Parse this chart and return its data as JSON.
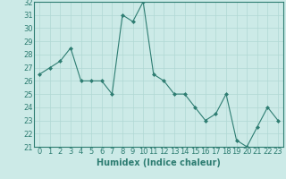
{
  "x": [
    0,
    1,
    2,
    3,
    4,
    5,
    6,
    7,
    8,
    9,
    10,
    11,
    12,
    13,
    14,
    15,
    16,
    17,
    18,
    19,
    20,
    21,
    22,
    23
  ],
  "y": [
    26.5,
    27,
    27.5,
    28.5,
    26,
    26,
    26,
    25,
    31,
    30.5,
    32,
    26.5,
    26,
    25,
    25,
    24,
    23,
    23.5,
    25,
    21.5,
    21,
    22.5,
    24,
    23
  ],
  "line_color": "#2e7d72",
  "marker": "D",
  "marker_size": 2,
  "bg_color": "#cceae7",
  "grid_color": "#b0d8d4",
  "xlabel": "Humidex (Indice chaleur)",
  "ylim": [
    21,
    32
  ],
  "xlim": [
    -0.5,
    23.5
  ],
  "yticks": [
    21,
    22,
    23,
    24,
    25,
    26,
    27,
    28,
    29,
    30,
    31,
    32
  ],
  "xticks": [
    0,
    1,
    2,
    3,
    4,
    5,
    6,
    7,
    8,
    9,
    10,
    11,
    12,
    13,
    14,
    15,
    16,
    17,
    18,
    19,
    20,
    21,
    22,
    23
  ],
  "xlabel_fontsize": 7,
  "tick_fontsize": 6,
  "xlabel_color": "#2e7d72",
  "tick_color": "#2e7d72",
  "line_width": 0.8
}
